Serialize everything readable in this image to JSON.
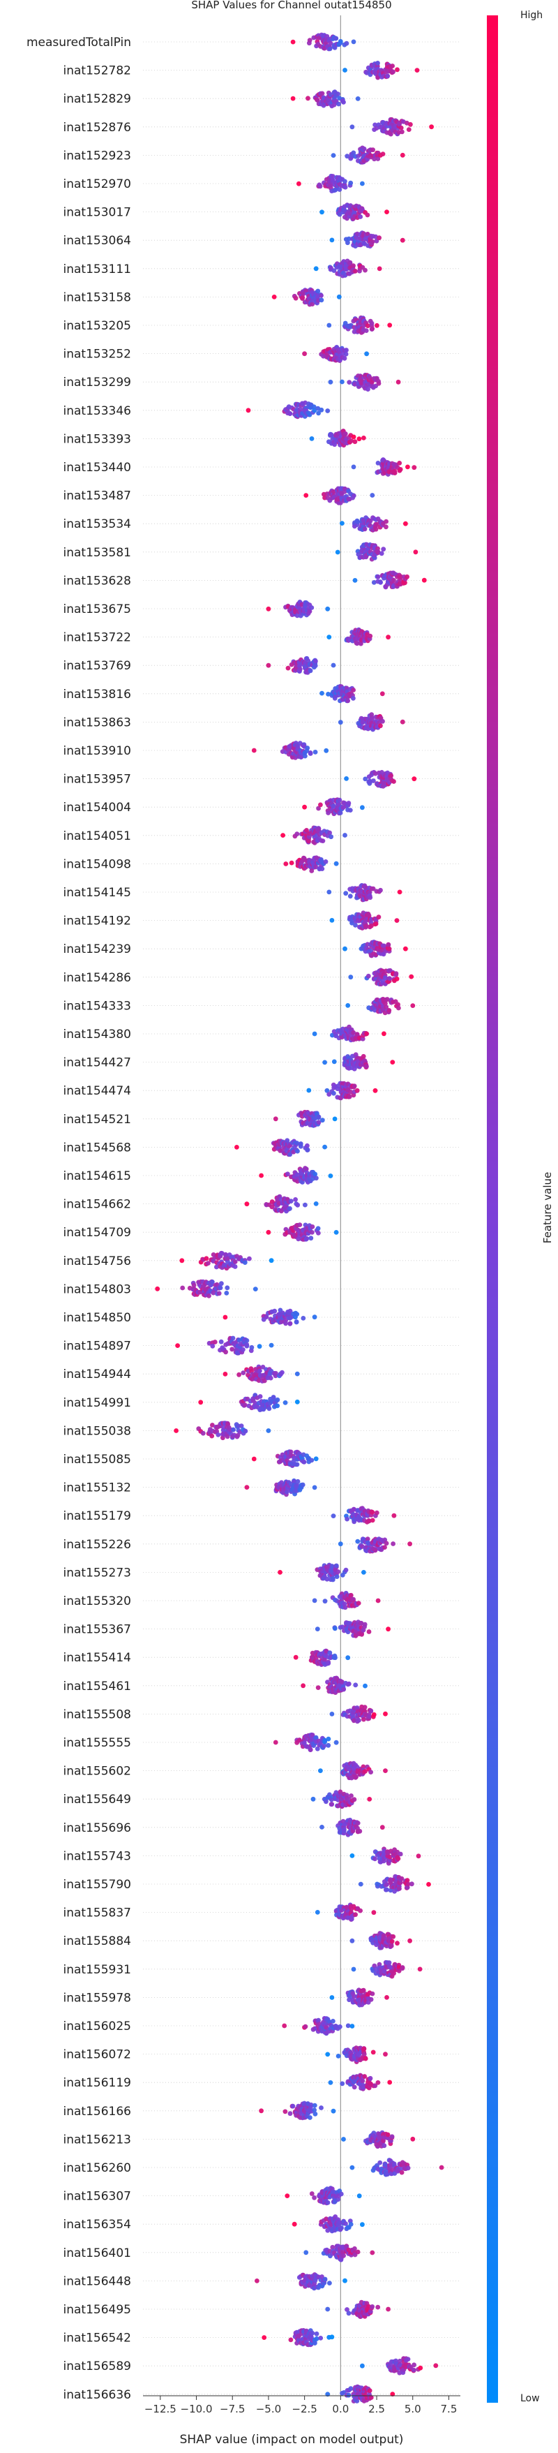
{
  "chart_data": {
    "type": "scatter",
    "plot_kind": "shap-beeswarm",
    "title": "SHAP Values for Channel outat154850",
    "xlabel": "SHAP value (impact on model output)",
    "xlim": [
      -13.7,
      8.3
    ],
    "xticks": [
      -12.5,
      -10.0,
      -7.5,
      -5.0,
      -2.5,
      0.0,
      2.5,
      5.0,
      7.5
    ],
    "xtick_labels": [
      "−12.5",
      "−10.0",
      "−7.5",
      "−5.0",
      "−2.5",
      "0.0",
      "2.5",
      "5.0",
      "7.5"
    ],
    "colorbar": {
      "label": "Feature value",
      "high_label": "High",
      "low_label": "Low",
      "low_color": "#008bfb",
      "high_color": "#ff0052"
    },
    "features": [
      {
        "name": "measuredTotalPin",
        "center": -1.0,
        "spread": 1.5,
        "min": -3.3,
        "max": 0.9
      },
      {
        "name": "inat152782",
        "center": 2.8,
        "spread": 1.3,
        "min": 0.3,
        "max": 5.3
      },
      {
        "name": "inat152829",
        "center": -0.8,
        "spread": 1.3,
        "min": -3.3,
        "max": 1.2
      },
      {
        "name": "inat152876",
        "center": 3.6,
        "spread": 1.5,
        "min": 0.8,
        "max": 6.3
      },
      {
        "name": "inat152923",
        "center": 1.7,
        "spread": 1.3,
        "min": -0.5,
        "max": 4.3
      },
      {
        "name": "inat152970",
        "center": -0.6,
        "spread": 1.3,
        "min": -2.9,
        "max": 1.5
      },
      {
        "name": "inat153017",
        "center": 0.8,
        "spread": 1.3,
        "min": -1.3,
        "max": 3.2
      },
      {
        "name": "inat153064",
        "center": 1.5,
        "spread": 1.3,
        "min": -0.6,
        "max": 4.3
      },
      {
        "name": "inat153111",
        "center": 0.4,
        "spread": 1.2,
        "min": -1.7,
        "max": 2.7
      },
      {
        "name": "inat153158",
        "center": -2.1,
        "spread": 1.2,
        "min": -4.6,
        "max": -0.1
      },
      {
        "name": "inat153205",
        "center": 1.3,
        "spread": 1.2,
        "min": -0.8,
        "max": 3.4
      },
      {
        "name": "inat153252",
        "center": -0.3,
        "spread": 1.2,
        "min": -2.5,
        "max": 1.8
      },
      {
        "name": "inat153299",
        "center": 1.7,
        "spread": 1.3,
        "min": -0.7,
        "max": 4.0
      },
      {
        "name": "inat153346",
        "center": -2.6,
        "spread": 1.3,
        "min": -6.4,
        "max": -0.9
      },
      {
        "name": "inat153393",
        "center": 0.1,
        "spread": 1.2,
        "min": -2.0,
        "max": 1.6
      },
      {
        "name": "inat153440",
        "center": 3.2,
        "spread": 1.3,
        "min": 0.9,
        "max": 5.1
      },
      {
        "name": "inat153487",
        "center": -0.1,
        "spread": 1.2,
        "min": -2.4,
        "max": 2.2
      },
      {
        "name": "inat153534",
        "center": 2.1,
        "spread": 1.3,
        "min": 0.1,
        "max": 4.5
      },
      {
        "name": "inat153581",
        "center": 1.9,
        "spread": 1.3,
        "min": -0.2,
        "max": 5.2
      },
      {
        "name": "inat153628",
        "center": 3.5,
        "spread": 1.4,
        "min": 1.0,
        "max": 5.8
      },
      {
        "name": "inat153675",
        "center": -2.8,
        "spread": 1.3,
        "min": -5.0,
        "max": -0.9
      },
      {
        "name": "inat153722",
        "center": 1.3,
        "spread": 1.1,
        "min": -0.8,
        "max": 3.3
      },
      {
        "name": "inat153769",
        "center": -2.5,
        "spread": 1.3,
        "min": -5.0,
        "max": -0.5
      },
      {
        "name": "inat153816",
        "center": 0.2,
        "spread": 1.2,
        "min": -1.3,
        "max": 2.9
      },
      {
        "name": "inat153863",
        "center": 2.1,
        "spread": 1.3,
        "min": 0.0,
        "max": 4.3
      },
      {
        "name": "inat153910",
        "center": -3.0,
        "spread": 1.2,
        "min": -6.0,
        "max": -1.0
      },
      {
        "name": "inat153957",
        "center": 2.8,
        "spread": 1.3,
        "min": 0.4,
        "max": 5.1
      },
      {
        "name": "inat154004",
        "center": -0.3,
        "spread": 1.2,
        "min": -2.5,
        "max": 1.5
      },
      {
        "name": "inat154051",
        "center": -1.8,
        "spread": 1.3,
        "min": -4.0,
        "max": 0.3
      },
      {
        "name": "inat154098",
        "center": -2.0,
        "spread": 1.3,
        "min": -3.8,
        "max": -0.3
      },
      {
        "name": "inat154145",
        "center": 1.6,
        "spread": 1.3,
        "min": -0.8,
        "max": 4.1
      },
      {
        "name": "inat154192",
        "center": 1.6,
        "spread": 1.3,
        "min": -0.6,
        "max": 3.9
      },
      {
        "name": "inat154239",
        "center": 2.5,
        "spread": 1.2,
        "min": 0.3,
        "max": 4.5
      },
      {
        "name": "inat154286",
        "center": 3.0,
        "spread": 1.3,
        "min": 0.7,
        "max": 4.9
      },
      {
        "name": "inat154333",
        "center": 2.9,
        "spread": 1.3,
        "min": 0.5,
        "max": 5.0
      },
      {
        "name": "inat154380",
        "center": 0.8,
        "spread": 1.3,
        "min": -1.8,
        "max": 3.0
      },
      {
        "name": "inat154427",
        "center": 1.0,
        "spread": 1.3,
        "min": -1.1,
        "max": 3.6
      },
      {
        "name": "inat154474",
        "center": 0.1,
        "spread": 1.3,
        "min": -2.2,
        "max": 2.4
      },
      {
        "name": "inat154521",
        "center": -2.2,
        "spread": 1.2,
        "min": -4.5,
        "max": -0.4
      },
      {
        "name": "inat154568",
        "center": -3.6,
        "spread": 1.5,
        "min": -7.2,
        "max": -1.1
      },
      {
        "name": "inat154615",
        "center": -2.6,
        "spread": 1.3,
        "min": -5.5,
        "max": -0.7
      },
      {
        "name": "inat154662",
        "center": -4.0,
        "spread": 1.3,
        "min": -6.5,
        "max": -1.7
      },
      {
        "name": "inat154709",
        "center": -2.6,
        "spread": 1.4,
        "min": -5.0,
        "max": -0.3
      },
      {
        "name": "inat154756",
        "center": -8.0,
        "spread": 1.8,
        "min": -11.0,
        "max": -4.8
      },
      {
        "name": "inat154803",
        "center": -9.3,
        "spread": 2.0,
        "min": -12.7,
        "max": -5.9
      },
      {
        "name": "inat154850",
        "center": -4.0,
        "spread": 1.6,
        "min": -8.0,
        "max": -1.8
      },
      {
        "name": "inat154897",
        "center": -7.3,
        "spread": 1.9,
        "min": -11.3,
        "max": -4.8
      },
      {
        "name": "inat154944",
        "center": -5.5,
        "spread": 1.5,
        "min": -8.0,
        "max": -3.0
      },
      {
        "name": "inat154991",
        "center": -5.5,
        "spread": 1.6,
        "min": -9.7,
        "max": -3.0
      },
      {
        "name": "inat155038",
        "center": -8.0,
        "spread": 1.9,
        "min": -11.4,
        "max": -5.0
      },
      {
        "name": "inat155085",
        "center": -3.3,
        "spread": 1.3,
        "min": -6.0,
        "max": -1.7
      },
      {
        "name": "inat155132",
        "center": -3.5,
        "spread": 1.3,
        "min": -6.5,
        "max": -1.8
      },
      {
        "name": "inat155179",
        "center": 1.4,
        "spread": 1.3,
        "min": -0.5,
        "max": 3.7
      },
      {
        "name": "inat155226",
        "center": 2.2,
        "spread": 1.3,
        "min": 0.0,
        "max": 4.8
      },
      {
        "name": "inat155273",
        "center": -0.7,
        "spread": 1.4,
        "min": -4.2,
        "max": 1.6
      },
      {
        "name": "inat155320",
        "center": 0.4,
        "spread": 1.2,
        "min": -1.8,
        "max": 2.6
      },
      {
        "name": "inat155367",
        "center": 0.9,
        "spread": 1.3,
        "min": -1.6,
        "max": 3.3
      },
      {
        "name": "inat155414",
        "center": -1.2,
        "spread": 1.1,
        "min": -3.1,
        "max": 0.5
      },
      {
        "name": "inat155461",
        "center": -0.3,
        "spread": 1.2,
        "min": -2.6,
        "max": 1.7
      },
      {
        "name": "inat155508",
        "center": 1.3,
        "spread": 1.2,
        "min": -0.6,
        "max": 3.1
      },
      {
        "name": "inat155555",
        "center": -1.9,
        "spread": 1.3,
        "min": -4.5,
        "max": -0.3
      },
      {
        "name": "inat155602",
        "center": 0.9,
        "spread": 1.3,
        "min": -1.4,
        "max": 3.1
      },
      {
        "name": "inat155649",
        "center": 0.0,
        "spread": 1.2,
        "min": -1.9,
        "max": 2.0
      },
      {
        "name": "inat155696",
        "center": 0.6,
        "spread": 1.2,
        "min": -1.3,
        "max": 2.9
      },
      {
        "name": "inat155743",
        "center": 3.3,
        "spread": 1.3,
        "min": 0.8,
        "max": 5.4
      },
      {
        "name": "inat155790",
        "center": 3.8,
        "spread": 1.4,
        "min": 1.4,
        "max": 6.1
      },
      {
        "name": "inat155837",
        "center": 0.5,
        "spread": 1.2,
        "min": -1.6,
        "max": 2.3
      },
      {
        "name": "inat155884",
        "center": 2.9,
        "spread": 1.2,
        "min": 0.8,
        "max": 4.8
      },
      {
        "name": "inat155931",
        "center": 3.3,
        "spread": 1.3,
        "min": 0.9,
        "max": 5.5
      },
      {
        "name": "inat155978",
        "center": 1.3,
        "spread": 1.2,
        "min": -0.6,
        "max": 3.2
      },
      {
        "name": "inat156025",
        "center": -1.1,
        "spread": 1.3,
        "min": -3.9,
        "max": 0.8
      },
      {
        "name": "inat156072",
        "center": 1.1,
        "spread": 1.2,
        "min": -0.9,
        "max": 3.1
      },
      {
        "name": "inat156119",
        "center": 1.4,
        "spread": 1.2,
        "min": -0.7,
        "max": 3.4
      },
      {
        "name": "inat156166",
        "center": -2.5,
        "spread": 1.4,
        "min": -5.5,
        "max": -0.5
      },
      {
        "name": "inat156213",
        "center": 2.7,
        "spread": 1.3,
        "min": 0.2,
        "max": 5.0
      },
      {
        "name": "inat156260",
        "center": 3.5,
        "spread": 1.4,
        "min": 0.8,
        "max": 7.0
      },
      {
        "name": "inat156307",
        "center": -0.8,
        "spread": 1.3,
        "min": -3.7,
        "max": 1.3
      },
      {
        "name": "inat156354",
        "center": -0.4,
        "spread": 1.3,
        "min": -3.2,
        "max": 1.5
      },
      {
        "name": "inat156401",
        "center": 0.1,
        "spread": 1.2,
        "min": -2.4,
        "max": 2.2
      },
      {
        "name": "inat156448",
        "center": -1.9,
        "spread": 1.5,
        "min": -5.8,
        "max": 0.3
      },
      {
        "name": "inat156495",
        "center": 1.4,
        "spread": 1.2,
        "min": -0.9,
        "max": 3.3
      },
      {
        "name": "inat156542",
        "center": -2.4,
        "spread": 1.3,
        "min": -5.3,
        "max": -0.6
      },
      {
        "name": "inat156589",
        "center": 4.3,
        "spread": 1.4,
        "min": 1.5,
        "max": 6.6
      },
      {
        "name": "inat156636",
        "center": 1.3,
        "spread": 1.3,
        "min": -0.9,
        "max": 3.6
      }
    ]
  }
}
